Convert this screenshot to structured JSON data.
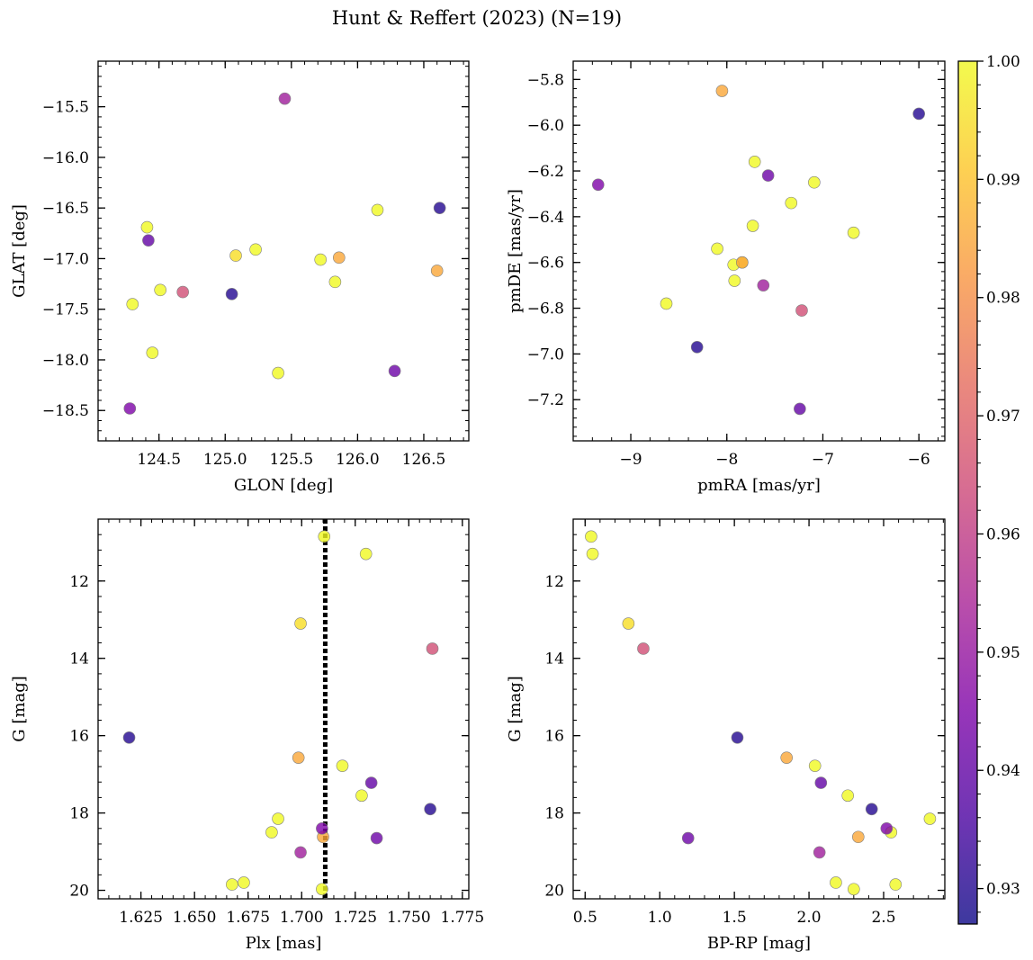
{
  "colorbar": {
    "min": 0.927,
    "max": 1.0,
    "ticks": [
      0.93,
      0.94,
      0.95,
      0.96,
      0.97,
      0.98,
      0.99,
      1.0
    ],
    "tick_labels": [
      "0.93",
      "0.94",
      "0.95",
      "0.96",
      "0.97",
      "0.98",
      "0.99",
      "1.00"
    ]
  },
  "chart_data": {
    "type": "scatter",
    "title": "Hunt & Reffert (2023) (N=19)",
    "stars": [
      {
        "glon": 125.08,
        "glat": -16.97,
        "pmra": -7.84,
        "pmde": -6.6,
        "plx": 1.6995,
        "g": 13.1,
        "bprp": 0.79,
        "prob": 0.995
      },
      {
        "glon": 124.3,
        "glat": -17.45,
        "pmra": -8.63,
        "pmde": -6.78,
        "plx": 1.6675,
        "g": 19.85,
        "bprp": 2.58,
        "prob": 1.0
      },
      {
        "glon": 124.41,
        "glat": -16.69,
        "pmra": -7.33,
        "pmde": -6.34,
        "plx": 1.7105,
        "g": 10.85,
        "bprp": 0.54,
        "prob": 1.0
      },
      {
        "glon": 124.51,
        "glat": -17.31,
        "pmra": -8.1,
        "pmde": -6.54,
        "plx": 1.728,
        "g": 17.55,
        "bprp": 2.26,
        "prob": 1.0
      },
      {
        "glon": 124.45,
        "glat": -17.93,
        "pmra": -7.92,
        "pmde": -6.68,
        "plx": 1.689,
        "g": 18.15,
        "bprp": 2.81,
        "prob": 1.0
      },
      {
        "glon": 125.23,
        "glat": -16.91,
        "pmra": -7.93,
        "pmde": -6.61,
        "plx": 1.686,
        "g": 18.5,
        "bprp": 2.55,
        "prob": 1.0
      },
      {
        "glon": 125.72,
        "glat": -17.01,
        "pmra": -7.09,
        "pmde": -6.25,
        "plx": 1.719,
        "g": 16.78,
        "bprp": 2.04,
        "prob": 1.0
      },
      {
        "glon": 125.83,
        "glat": -17.23,
        "pmra": -7.73,
        "pmde": -6.44,
        "plx": 1.673,
        "g": 19.8,
        "bprp": 2.18,
        "prob": 1.0
      },
      {
        "glon": 126.15,
        "glat": -16.52,
        "pmra": -6.68,
        "pmde": -6.47,
        "plx": 1.7095,
        "g": 19.97,
        "bprp": 2.3,
        "prob": 1.0
      },
      {
        "glon": 125.4,
        "glat": -18.13,
        "pmra": -7.71,
        "pmde": -6.16,
        "plx": 1.73,
        "g": 11.3,
        "bprp": 0.55,
        "prob": 1.0
      },
      {
        "glon": 125.86,
        "glat": -16.99,
        "pmra": -8.05,
        "pmde": -5.85,
        "plx": 1.6985,
        "g": 16.57,
        "bprp": 1.85,
        "prob": 0.985
      },
      {
        "glon": 126.6,
        "glat": -17.12,
        "pmra": -7.84,
        "pmde": -6.6,
        "plx": 1.71,
        "g": 18.62,
        "bprp": 2.33,
        "prob": 0.985
      },
      {
        "glon": 124.68,
        "glat": -17.33,
        "pmra": -7.22,
        "pmde": -6.81,
        "plx": 1.761,
        "g": 13.75,
        "bprp": 0.89,
        "prob": 0.965
      },
      {
        "glon": 125.45,
        "glat": -15.42,
        "pmra": -7.62,
        "pmde": -6.7,
        "plx": 1.6995,
        "g": 19.02,
        "bprp": 2.07,
        "prob": 0.952
      },
      {
        "glon": 124.28,
        "glat": -18.48,
        "pmra": -9.34,
        "pmde": -6.26,
        "plx": 1.7095,
        "g": 18.4,
        "bprp": 2.52,
        "prob": 0.945
      },
      {
        "glon": 126.28,
        "glat": -18.11,
        "pmra": -7.57,
        "pmde": -6.22,
        "plx": 1.735,
        "g": 18.65,
        "bprp": 1.19,
        "prob": 0.942
      },
      {
        "glon": 124.42,
        "glat": -16.82,
        "pmra": -7.24,
        "pmde": -7.24,
        "plx": 1.7325,
        "g": 17.22,
        "bprp": 2.08,
        "prob": 0.94
      },
      {
        "glon": 125.05,
        "glat": -17.35,
        "pmra": -8.31,
        "pmde": -6.97,
        "plx": 1.6195,
        "g": 16.05,
        "bprp": 1.52,
        "prob": 0.93
      },
      {
        "glon": 126.62,
        "glat": -16.5,
        "pmra": -6.0,
        "pmde": -5.95,
        "plx": 1.76,
        "g": 17.9,
        "bprp": 2.42,
        "prob": 0.93
      }
    ],
    "panels": [
      {
        "id": "glon-glat",
        "type": "scatter",
        "x": "glon",
        "y": "glat",
        "xlabel": "GLON [deg]",
        "ylabel": "GLAT [deg]",
        "xlim": [
          124.04,
          126.84
        ],
        "ylim": [
          -18.8,
          -15.05
        ],
        "invert_y": false,
        "xticks": [
          124.5,
          125.0,
          125.5,
          126.0,
          126.5
        ],
        "xtick_labels": [
          "124.5",
          "125.0",
          "125.5",
          "126.0",
          "126.5"
        ],
        "xminor": 0.1,
        "yticks": [
          -18.5,
          -18.0,
          -17.5,
          -17.0,
          -16.5,
          -16.0,
          -15.5
        ],
        "ytick_labels": [
          "−18.5",
          "−18.0",
          "−17.5",
          "−17.0",
          "−16.5",
          "−16.0",
          "−15.5"
        ],
        "yminor": 0.1,
        "vline": null
      },
      {
        "id": "pmra-pmde",
        "type": "scatter",
        "x": "pmra",
        "y": "pmde",
        "xlabel": "pmRA [mas/yr]",
        "ylabel": "pmDE [mas/yr]",
        "xlim": [
          -9.6,
          -5.73
        ],
        "ylim": [
          -7.38,
          -5.72
        ],
        "invert_y": false,
        "xticks": [
          -9,
          -8,
          -7,
          -6
        ],
        "xtick_labels": [
          "−9",
          "−8",
          "−7",
          "−6"
        ],
        "xminor": 0.2,
        "yticks": [
          -7.2,
          -7.0,
          -6.8,
          -6.6,
          -6.4,
          -6.2,
          -6.0,
          -5.8
        ],
        "ytick_labels": [
          "−7.2",
          "−7.0",
          "−6.8",
          "−6.6",
          "−6.4",
          "−6.2",
          "−6.0",
          "−5.8"
        ],
        "yminor": 0.04,
        "vline": null
      },
      {
        "id": "plx-g",
        "type": "scatter",
        "x": "plx",
        "y": "g",
        "xlabel": "Plx [mas]",
        "ylabel": "G [mag]",
        "xlim": [
          1.605,
          1.778
        ],
        "ylim": [
          10.4,
          20.22
        ],
        "invert_y": true,
        "xticks": [
          1.625,
          1.65,
          1.675,
          1.7,
          1.725,
          1.75,
          1.775
        ],
        "xtick_labels": [
          "1.625",
          "1.650",
          "1.675",
          "1.700",
          "1.725",
          "1.750",
          "1.775"
        ],
        "xminor": 0.005,
        "yticks": [
          12,
          14,
          16,
          18,
          20
        ],
        "ytick_labels": [
          "12",
          "14",
          "16",
          "18",
          "20"
        ],
        "yminor": 0.4,
        "vline": 1.711
      },
      {
        "id": "bprp-g",
        "type": "scatter",
        "x": "bprp",
        "y": "g",
        "xlabel": "BP-RP [mag]",
        "ylabel": "G [mag]",
        "xlim": [
          0.42,
          2.91
        ],
        "ylim": [
          10.4,
          20.22
        ],
        "invert_y": true,
        "xticks": [
          0.5,
          1.0,
          1.5,
          2.0,
          2.5
        ],
        "xtick_labels": [
          "0.5",
          "1.0",
          "1.5",
          "2.0",
          "2.5"
        ],
        "xminor": 0.1,
        "yticks": [
          12,
          14,
          16,
          18,
          20
        ],
        "ytick_labels": [
          "12",
          "14",
          "16",
          "18",
          "20"
        ],
        "yminor": 0.4,
        "vline": null
      }
    ]
  }
}
